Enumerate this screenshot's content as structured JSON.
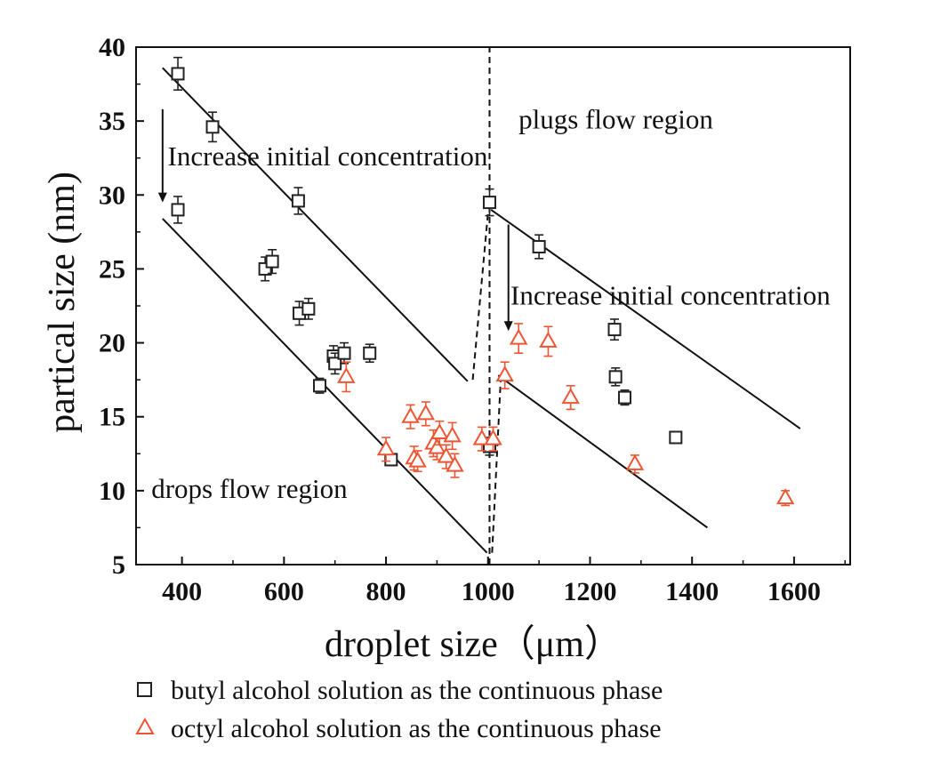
{
  "chart_data": {
    "type": "scatter",
    "xlabel": "droplet size（μm）",
    "ylabel": "partical size (nm)",
    "xlim": [
      310,
      1710
    ],
    "ylim": [
      5,
      40
    ],
    "xticks": [
      400,
      600,
      800,
      1000,
      1200,
      1400,
      1600
    ],
    "yticks": [
      5,
      10,
      15,
      20,
      25,
      30,
      35,
      40
    ],
    "grid": false,
    "legend_placement": "bottom, below the axes",
    "colors": {
      "butyl": "#222222",
      "octyl": "#ee5533",
      "axis": "#111111"
    },
    "series": [
      {
        "name": "butyl alcohol solution as the continuous phase",
        "marker": "square",
        "color": "#222222",
        "points": [
          {
            "x": 392,
            "y": 38.2,
            "err": 1.1
          },
          {
            "x": 460,
            "y": 34.6,
            "err": 1.0
          },
          {
            "x": 392,
            "y": 29.0,
            "err": 0.9
          },
          {
            "x": 628,
            "y": 29.6,
            "err": 0.9
          },
          {
            "x": 563,
            "y": 25.0,
            "err": 0.8
          },
          {
            "x": 577,
            "y": 25.5,
            "err": 0.8
          },
          {
            "x": 630,
            "y": 22.0,
            "err": 0.8
          },
          {
            "x": 648,
            "y": 22.3,
            "err": 0.7
          },
          {
            "x": 670,
            "y": 17.1,
            "err": 0.5
          },
          {
            "x": 697,
            "y": 19.1,
            "err": 0.7
          },
          {
            "x": 700,
            "y": 18.6,
            "err": 0.7
          },
          {
            "x": 718,
            "y": 19.3,
            "err": 0.7
          },
          {
            "x": 768,
            "y": 19.3,
            "err": 0.6
          },
          {
            "x": 810,
            "y": 12.1,
            "err": 0.4
          },
          {
            "x": 1003,
            "y": 29.5,
            "err": 0.9
          },
          {
            "x": 1003,
            "y": 13.0,
            "err": 0.6
          },
          {
            "x": 1100,
            "y": 26.5,
            "err": 0.8
          },
          {
            "x": 1248,
            "y": 20.9,
            "err": 0.7
          },
          {
            "x": 1250,
            "y": 17.7,
            "err": 0.6
          },
          {
            "x": 1268,
            "y": 16.3,
            "err": 0.5
          },
          {
            "x": 1368,
            "y": 13.6,
            "err": 0.3
          }
        ]
      },
      {
        "name": "octyl alcohol solution as the continuous phase",
        "marker": "triangle",
        "color": "#ee5533",
        "points": [
          {
            "x": 722,
            "y": 17.7,
            "err": 1.0
          },
          {
            "x": 800,
            "y": 12.8,
            "err": 0.8
          },
          {
            "x": 848,
            "y": 15.0,
            "err": 0.8
          },
          {
            "x": 855,
            "y": 12.2,
            "err": 0.8
          },
          {
            "x": 862,
            "y": 12.0,
            "err": 0.7
          },
          {
            "x": 878,
            "y": 15.2,
            "err": 0.8
          },
          {
            "x": 893,
            "y": 13.2,
            "err": 0.9
          },
          {
            "x": 900,
            "y": 12.9,
            "err": 0.8
          },
          {
            "x": 905,
            "y": 13.9,
            "err": 0.8
          },
          {
            "x": 918,
            "y": 12.3,
            "err": 0.8
          },
          {
            "x": 930,
            "y": 13.7,
            "err": 0.9
          },
          {
            "x": 935,
            "y": 11.7,
            "err": 0.8
          },
          {
            "x": 988,
            "y": 13.5,
            "err": 0.8
          },
          {
            "x": 1010,
            "y": 13.5,
            "err": 0.8
          },
          {
            "x": 1033,
            "y": 17.8,
            "err": 0.9
          },
          {
            "x": 1060,
            "y": 20.3,
            "err": 1.0
          },
          {
            "x": 1118,
            "y": 20.1,
            "err": 1.0
          },
          {
            "x": 1162,
            "y": 16.3,
            "err": 0.8
          },
          {
            "x": 1288,
            "y": 11.8,
            "err": 0.6
          },
          {
            "x": 1583,
            "y": 9.5,
            "err": 0.5
          }
        ]
      }
    ],
    "trend_lines": [
      {
        "style": "solid",
        "from": [
          362,
          38.6
        ],
        "to": [
          960,
          17.4
        ]
      },
      {
        "style": "solid",
        "from": [
          362,
          28.4
        ],
        "to": [
          998,
          5.8
        ]
      },
      {
        "style": "solid",
        "from": [
          1006,
          29.0
        ],
        "to": [
          1612,
          14.2
        ]
      },
      {
        "style": "solid",
        "from": [
          1020,
          17.8
        ],
        "to": [
          1430,
          7.5
        ]
      },
      {
        "style": "dashed",
        "from": [
          1003,
          5.0
        ],
        "to": [
          1003,
          40.0
        ]
      },
      {
        "style": "dashed",
        "from": [
          970,
          17.5
        ],
        "to": [
          1000,
          28.8
        ]
      },
      {
        "style": "dashed",
        "from": [
          1008,
          5.8
        ],
        "to": [
          1025,
          17.6
        ]
      }
    ],
    "arrows": [
      {
        "from": [
          362,
          35.8
        ],
        "to": [
          362,
          29.5
        ]
      },
      {
        "from": [
          1040,
          28.0
        ],
        "to": [
          1040,
          20.8
        ]
      }
    ],
    "annotations": [
      {
        "text": "Increase initial concentration",
        "x": 372,
        "y": 32.0
      },
      {
        "text": "Increase initial concentration",
        "x": 1044,
        "y": 22.6
      },
      {
        "text": "plugs flow region",
        "x": 1060,
        "y": 34.5
      },
      {
        "text": "drops flow region",
        "x": 340,
        "y": 9.5
      }
    ]
  }
}
